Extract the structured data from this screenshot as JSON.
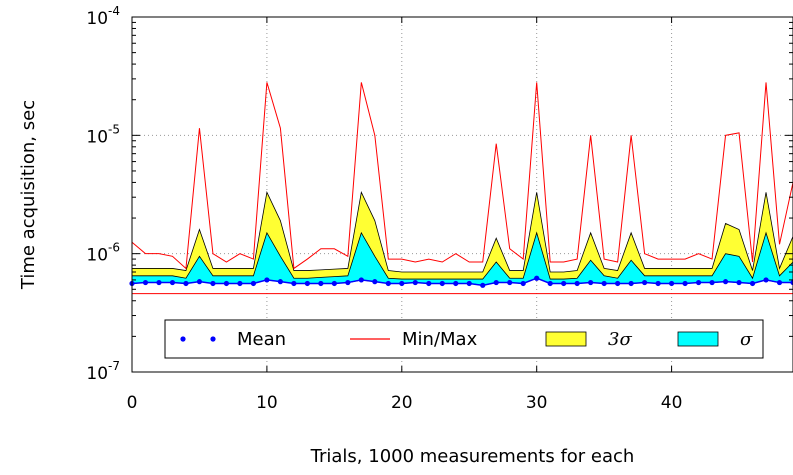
{
  "chart_data": {
    "type": "area",
    "xlabel": "Trials, 1000 measurements for each",
    "ylabel": "Time acquisition, sec",
    "yscale": "log",
    "xlim": [
      0,
      49
    ],
    "ylim": [
      1e-07,
      0.0001
    ],
    "grid": true,
    "legend_position": "lower-center",
    "x_ticks": [
      {
        "value": 0,
        "label": "0"
      },
      {
        "value": 10,
        "label": "10"
      },
      {
        "value": 20,
        "label": "20"
      },
      {
        "value": 30,
        "label": "30"
      },
      {
        "value": 40,
        "label": "40"
      }
    ],
    "y_ticks": [
      {
        "value": 1e-07,
        "base": "10",
        "exp": "-7"
      },
      {
        "value": 1e-06,
        "base": "10",
        "exp": "-6"
      },
      {
        "value": 1e-05,
        "base": "10",
        "exp": "-5"
      },
      {
        "value": 0.0001,
        "base": "10",
        "exp": "-4"
      }
    ],
    "x": [
      0,
      1,
      2,
      3,
      4,
      5,
      6,
      7,
      8,
      9,
      10,
      11,
      12,
      13,
      14,
      15,
      16,
      17,
      18,
      19,
      20,
      21,
      22,
      23,
      24,
      25,
      26,
      27,
      28,
      29,
      30,
      31,
      32,
      33,
      34,
      35,
      36,
      37,
      38,
      39,
      40,
      41,
      42,
      43,
      44,
      45,
      46,
      47,
      48,
      49
    ],
    "series": [
      {
        "name": "Mean",
        "kind": "points",
        "color": "#0000ff",
        "values": [
          5.6e-07,
          5.7e-07,
          5.7e-07,
          5.7e-07,
          5.6e-07,
          5.8e-07,
          5.6e-07,
          5.6e-07,
          5.6e-07,
          5.6e-07,
          6e-07,
          5.8e-07,
          5.6e-07,
          5.6e-07,
          5.6e-07,
          5.6e-07,
          5.7e-07,
          6e-07,
          5.8e-07,
          5.6e-07,
          5.6e-07,
          5.7e-07,
          5.6e-07,
          5.6e-07,
          5.6e-07,
          5.6e-07,
          5.4e-07,
          5.7e-07,
          5.7e-07,
          5.6e-07,
          6.2e-07,
          5.6e-07,
          5.6e-07,
          5.6e-07,
          5.7e-07,
          5.6e-07,
          5.6e-07,
          5.6e-07,
          5.7e-07,
          5.6e-07,
          5.6e-07,
          5.6e-07,
          5.7e-07,
          5.7e-07,
          5.8e-07,
          5.7e-07,
          5.6e-07,
          6e-07,
          5.7e-07,
          5.7e-07
        ]
      },
      {
        "name": "Min/Max",
        "kind": "line",
        "color": "#ff0000",
        "max": [
          1.25e-06,
          1e-06,
          1e-06,
          9.5e-07,
          7.5e-07,
          1.15e-05,
          1e-06,
          8.5e-07,
          1e-06,
          9e-07,
          2.8e-05,
          1.15e-05,
          7.5e-07,
          9e-07,
          1.1e-06,
          1.1e-06,
          9.5e-07,
          2.8e-05,
          1e-05,
          9e-07,
          9e-07,
          8.5e-07,
          9e-07,
          8.5e-07,
          1e-06,
          8.5e-07,
          8.5e-07,
          8.5e-06,
          1.1e-06,
          9e-07,
          2.8e-05,
          8.5e-07,
          8.5e-07,
          9e-07,
          1e-05,
          9e-07,
          8.5e-07,
          1e-05,
          1e-06,
          9e-07,
          9e-07,
          9e-07,
          1e-06,
          9e-07,
          1e-05,
          1.05e-05,
          8.5e-07,
          2.8e-05,
          1.2e-06,
          4e-06
        ],
        "min": 4.6e-07
      },
      {
        "name": "3σ",
        "kind": "band",
        "color": "#ffff33",
        "upper": [
          7.5e-07,
          7.5e-07,
          7.5e-07,
          7.5e-07,
          7.2e-07,
          1.6e-06,
          7.5e-07,
          7.5e-07,
          7.5e-07,
          7.5e-07,
          3.3e-06,
          1.9e-06,
          7.2e-07,
          7.2e-07,
          7.3e-07,
          7.4e-07,
          7.5e-07,
          3.3e-06,
          1.9e-06,
          7.2e-07,
          7e-07,
          7e-07,
          7e-07,
          7e-07,
          7e-07,
          7e-07,
          7e-07,
          1.35e-06,
          7.2e-07,
          7.2e-07,
          3.3e-06,
          7e-07,
          7e-07,
          7.2e-07,
          1.5e-06,
          7.5e-07,
          7.2e-07,
          1.5e-06,
          7.5e-07,
          7.5e-07,
          7.5e-07,
          7.5e-07,
          7.5e-07,
          7.5e-07,
          1.8e-06,
          1.6e-06,
          7.2e-07,
          3.3e-06,
          7.5e-07,
          1.4e-06
        ]
      },
      {
        "name": "σ",
        "kind": "band",
        "color": "#00ffff",
        "upper": [
          6.5e-07,
          6.5e-07,
          6.5e-07,
          6.5e-07,
          6.2e-07,
          9.5e-07,
          6.5e-07,
          6.5e-07,
          6.5e-07,
          6.5e-07,
          1.5e-06,
          9.5e-07,
          6.2e-07,
          6.2e-07,
          6.3e-07,
          6.4e-07,
          6.5e-07,
          1.5e-06,
          9.5e-07,
          6.2e-07,
          6.1e-07,
          6.1e-07,
          6.1e-07,
          6.1e-07,
          6.1e-07,
          6.1e-07,
          6.1e-07,
          8.5e-07,
          6.2e-07,
          6.2e-07,
          1.5e-06,
          6.1e-07,
          6.1e-07,
          6.2e-07,
          8.8e-07,
          6.5e-07,
          6.2e-07,
          8.8e-07,
          6.5e-07,
          6.5e-07,
          6.5e-07,
          6.5e-07,
          6.5e-07,
          6.5e-07,
          1e-06,
          9.5e-07,
          6.2e-07,
          1.5e-06,
          6.5e-07,
          8.5e-07
        ]
      }
    ],
    "legend": [
      {
        "label": "Mean",
        "kind": "points",
        "color": "#0000ff",
        "math": false
      },
      {
        "label": "Min/Max",
        "kind": "line",
        "color": "#ff0000",
        "math": false
      },
      {
        "label": "3σ",
        "kind": "patch",
        "color": "#ffff33",
        "math": true
      },
      {
        "label": "σ",
        "kind": "patch",
        "color": "#00ffff",
        "math": true
      }
    ]
  }
}
